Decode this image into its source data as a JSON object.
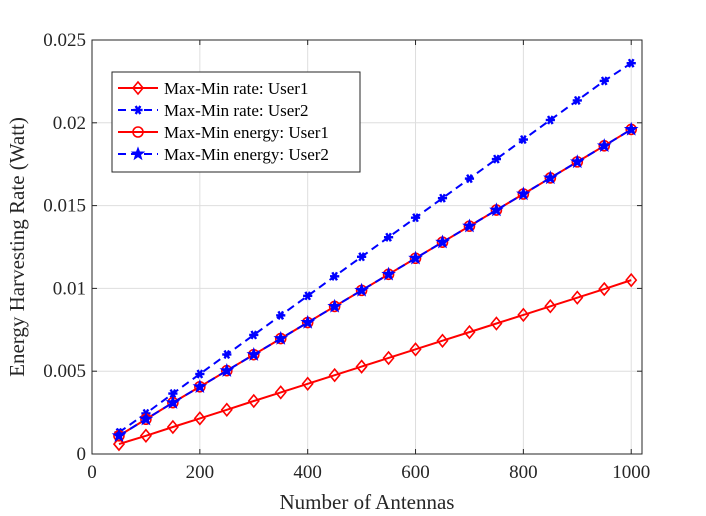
{
  "chart_data": {
    "type": "line",
    "xlabel": "Number of Antennas",
    "ylabel": "Energy Harvesting Rate (Watt)",
    "xlim": [
      0,
      1020
    ],
    "ylim": [
      0,
      0.025
    ],
    "x_ticks": [
      0,
      200,
      400,
      600,
      800,
      1000
    ],
    "x_tick_labels": [
      "0",
      "200",
      "400",
      "600",
      "800",
      "1000"
    ],
    "y_ticks": [
      0,
      0.005,
      0.01,
      0.015,
      0.02,
      0.025
    ],
    "y_tick_labels": [
      "0",
      "0.005",
      "0.01",
      "0.015",
      "0.02",
      "0.025"
    ],
    "grid": true,
    "legend_position": "top-left",
    "x": [
      50,
      100,
      150,
      200,
      250,
      300,
      350,
      400,
      450,
      500,
      550,
      600,
      650,
      700,
      750,
      800,
      850,
      900,
      950,
      1000
    ],
    "series": [
      {
        "name": "Max-Min rate: User1",
        "color": "#ff0000",
        "line_style": "solid",
        "marker": "diamond",
        "values": [
          0.0006,
          0.0011,
          0.00163,
          0.00215,
          0.00267,
          0.0032,
          0.00372,
          0.00424,
          0.00476,
          0.00528,
          0.0058,
          0.00632,
          0.00684,
          0.00736,
          0.00788,
          0.0084,
          0.00892,
          0.00944,
          0.00996,
          0.0105
        ]
      },
      {
        "name": "Max-Min rate: User2",
        "color": "#0000ff",
        "line_style": "dashed",
        "marker": "asterisk",
        "values": [
          0.0013,
          0.00245,
          0.00365,
          0.00483,
          0.00601,
          0.00719,
          0.00837,
          0.00955,
          0.01073,
          0.01191,
          0.01309,
          0.01427,
          0.01545,
          0.01663,
          0.01781,
          0.01899,
          0.02017,
          0.02135,
          0.02253,
          0.0236
        ]
      },
      {
        "name": "Max-Min energy: User1",
        "color": "#ff0000",
        "line_style": "solid",
        "marker": "circle",
        "values": [
          0.0011,
          0.0021,
          0.0031,
          0.00406,
          0.00503,
          0.006,
          0.00697,
          0.00794,
          0.00891,
          0.00988,
          0.01085,
          0.01182,
          0.01279,
          0.01376,
          0.01473,
          0.0157,
          0.01667,
          0.01764,
          0.01861,
          0.0196
        ]
      },
      {
        "name": "Max-Min energy: User2",
        "color": "#0000ff",
        "line_style": "dashed",
        "marker": "star",
        "values": [
          0.0011,
          0.0021,
          0.0031,
          0.00406,
          0.00503,
          0.006,
          0.00697,
          0.00794,
          0.00891,
          0.00988,
          0.01085,
          0.01182,
          0.01279,
          0.01376,
          0.01473,
          0.0157,
          0.01667,
          0.01764,
          0.01861,
          0.0196
        ]
      }
    ]
  }
}
